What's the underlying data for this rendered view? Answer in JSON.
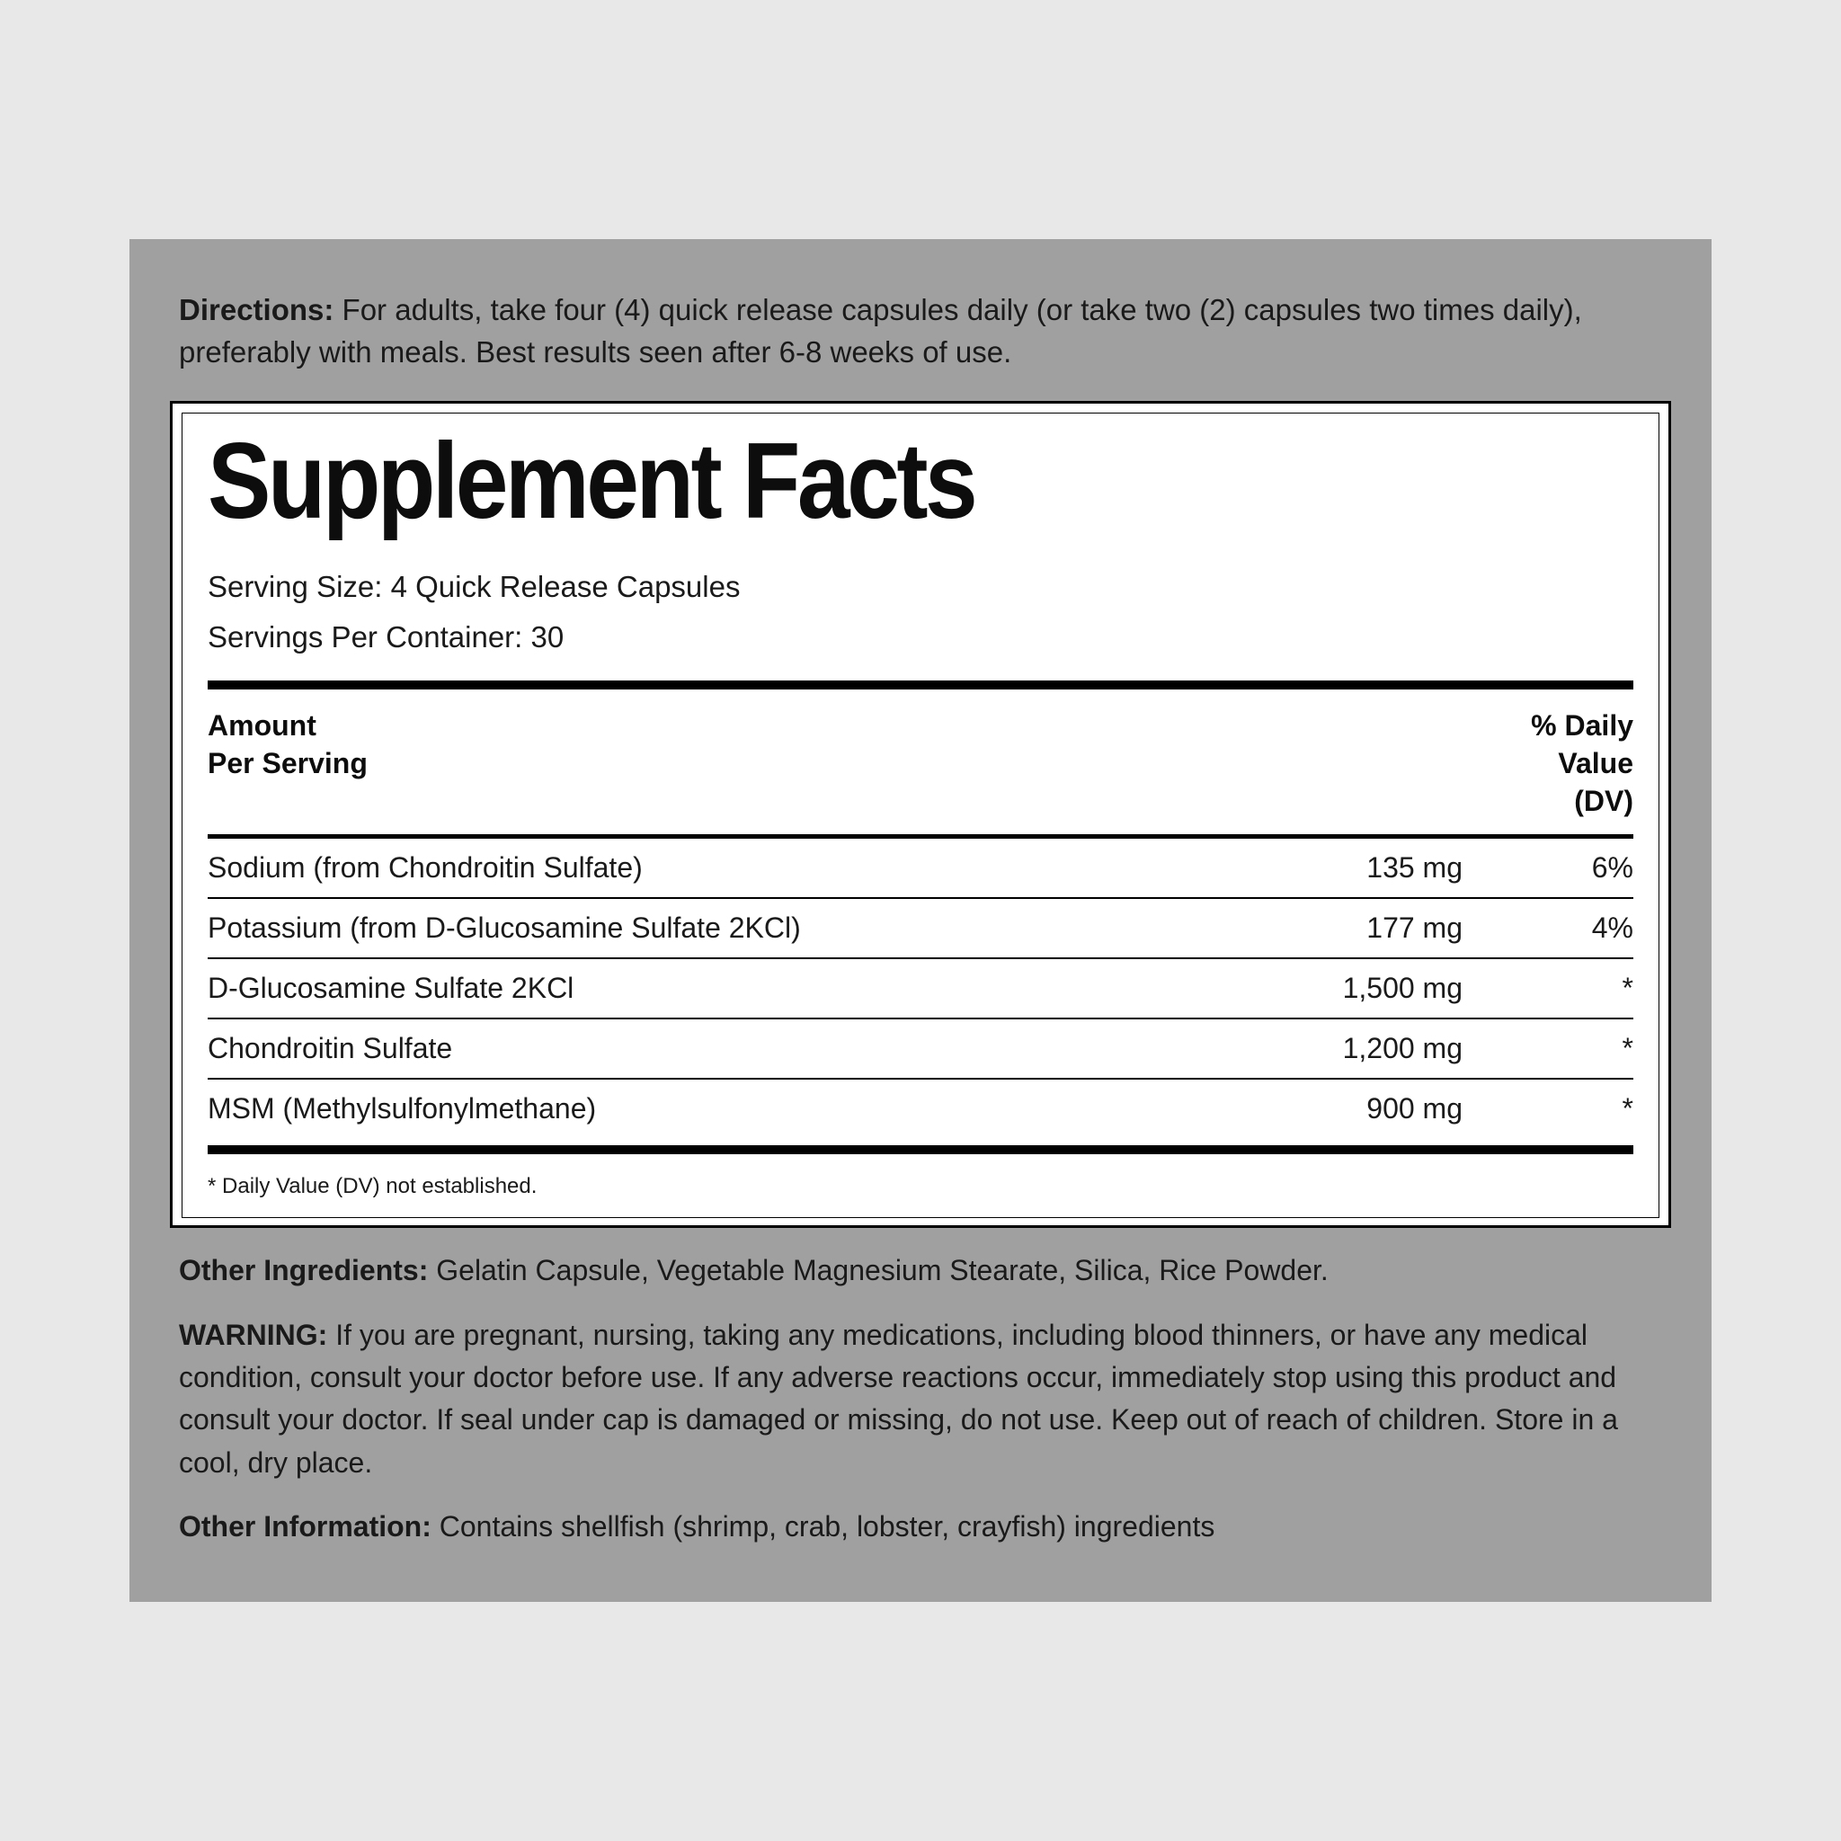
{
  "colors": {
    "page_bg": "#e8e8e8",
    "label_bg": "#a0a0a0",
    "panel_bg": "#ffffff",
    "text": "#1a1a1a",
    "rule": "#000000"
  },
  "directions": {
    "label": "Directions:",
    "text": " For adults, take four (4) quick release capsules daily (or take two (2) capsules two times daily), preferably with meals. Best results seen after 6-8 weeks of use."
  },
  "facts": {
    "title": "Supplement Facts",
    "serving_size_label": "Serving Size: ",
    "serving_size_value": "4 Quick Release Capsules",
    "servings_per_label": "Servings Per Container: ",
    "servings_per_value": "30",
    "header": {
      "amount_line1": "Amount",
      "amount_line2": "Per Serving",
      "dv_line1": "% Daily",
      "dv_line2": "Value",
      "dv_line3": "(DV)"
    },
    "rows": [
      {
        "name": "Sodium (from Chondroitin Sulfate)",
        "amount": "135 mg",
        "dv": "6%"
      },
      {
        "name": "Potassium (from D-Glucosamine Sulfate 2KCl)",
        "amount": "177 mg",
        "dv": "4%"
      },
      {
        "name": "D-Glucosamine Sulfate 2KCl",
        "amount": "1,500 mg",
        "dv": "*"
      },
      {
        "name": "Chondroitin Sulfate",
        "amount": "1,200 mg",
        "dv": "*"
      },
      {
        "name": "MSM (Methylsulfonylmethane)",
        "amount": "900 mg",
        "dv": "*"
      }
    ],
    "footnote": "* Daily Value (DV) not established."
  },
  "other_ingredients": {
    "label": "Other Ingredients:",
    "text": " Gelatin Capsule, Vegetable Magnesium Stearate, Silica, Rice Powder."
  },
  "warning": {
    "label": "WARNING:",
    "text": " If you are pregnant, nursing, taking any medications, including blood thinners, or have any medical condition, consult your doctor before use. If any adverse reactions occur, immediately stop using this product and consult your doctor. If seal under cap is damaged or missing, do not use. Keep out of reach of children. Store in a cool, dry place."
  },
  "other_info": {
    "label": "Other Information:",
    "text": " Contains shellfish (shrimp, crab, lobster, crayfish) ingredients"
  }
}
